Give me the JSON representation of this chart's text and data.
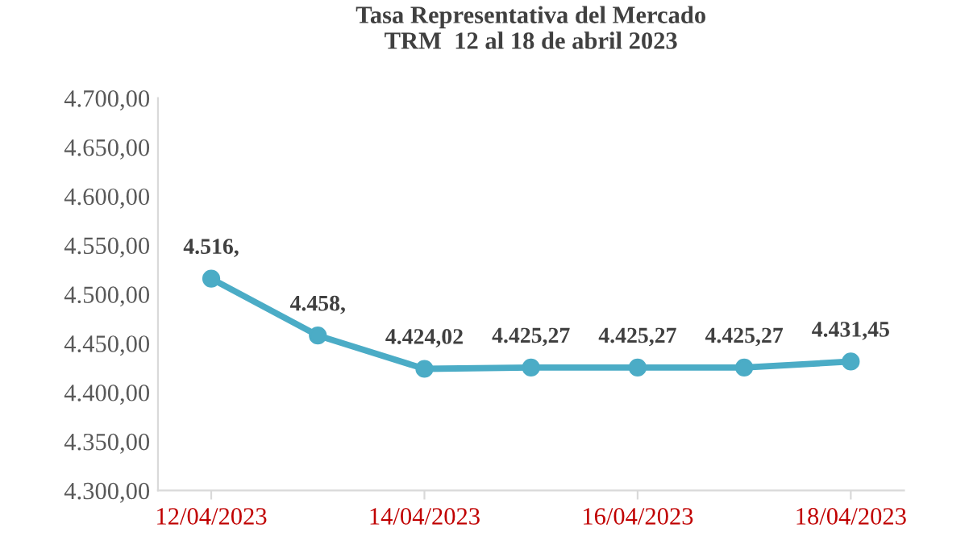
{
  "chart_data": {
    "type": "line",
    "title": "Tasa Representativa del Mercado\nTRM  12 al 18 de abril 2023",
    "x": [
      "2023-04-12",
      "2023-04-13",
      "2023-04-14",
      "2023-04-15",
      "2023-04-16",
      "2023-04-17",
      "2023-04-18"
    ],
    "series": [
      {
        "color": "#4bacc6",
        "values": [
          4516,
          4458,
          4424.02,
          4425.27,
          4425.27,
          4425.27,
          4431.45
        ],
        "value_labels": [
          "4.516,",
          "4.458,",
          "4.424,02",
          "4.425,27",
          "4.425,27",
          "4.425,27",
          "4.431,45"
        ]
      }
    ],
    "marker": "circle",
    "line_style": "solid",
    "grid": false,
    "legend": false,
    "xlim": [
      "2023-04-11T12:00",
      "2023-04-18T12:00"
    ],
    "xticks": [
      {
        "value": "2023-04-12",
        "label": "12/04/2023"
      },
      {
        "value": "2023-04-14",
        "label": "14/04/2023"
      },
      {
        "value": "2023-04-16",
        "label": "16/04/2023"
      },
      {
        "value": "2023-04-18",
        "label": "18/04/2023"
      }
    ],
    "ylim": [
      4300,
      4700
    ],
    "yticks": [
      {
        "value": 4300,
        "label": "4.300,00"
      },
      {
        "value": 4350,
        "label": "4.350,00"
      },
      {
        "value": 4400,
        "label": "4.400,00"
      },
      {
        "value": 4450,
        "label": "4.450,00"
      },
      {
        "value": 4500,
        "label": "4.500,00"
      },
      {
        "value": 4550,
        "label": "4.550,00"
      },
      {
        "value": 4600,
        "label": "4.600,00"
      },
      {
        "value": 4650,
        "label": "4.650,00"
      },
      {
        "value": 4700,
        "label": "4.700,00"
      }
    ]
  }
}
